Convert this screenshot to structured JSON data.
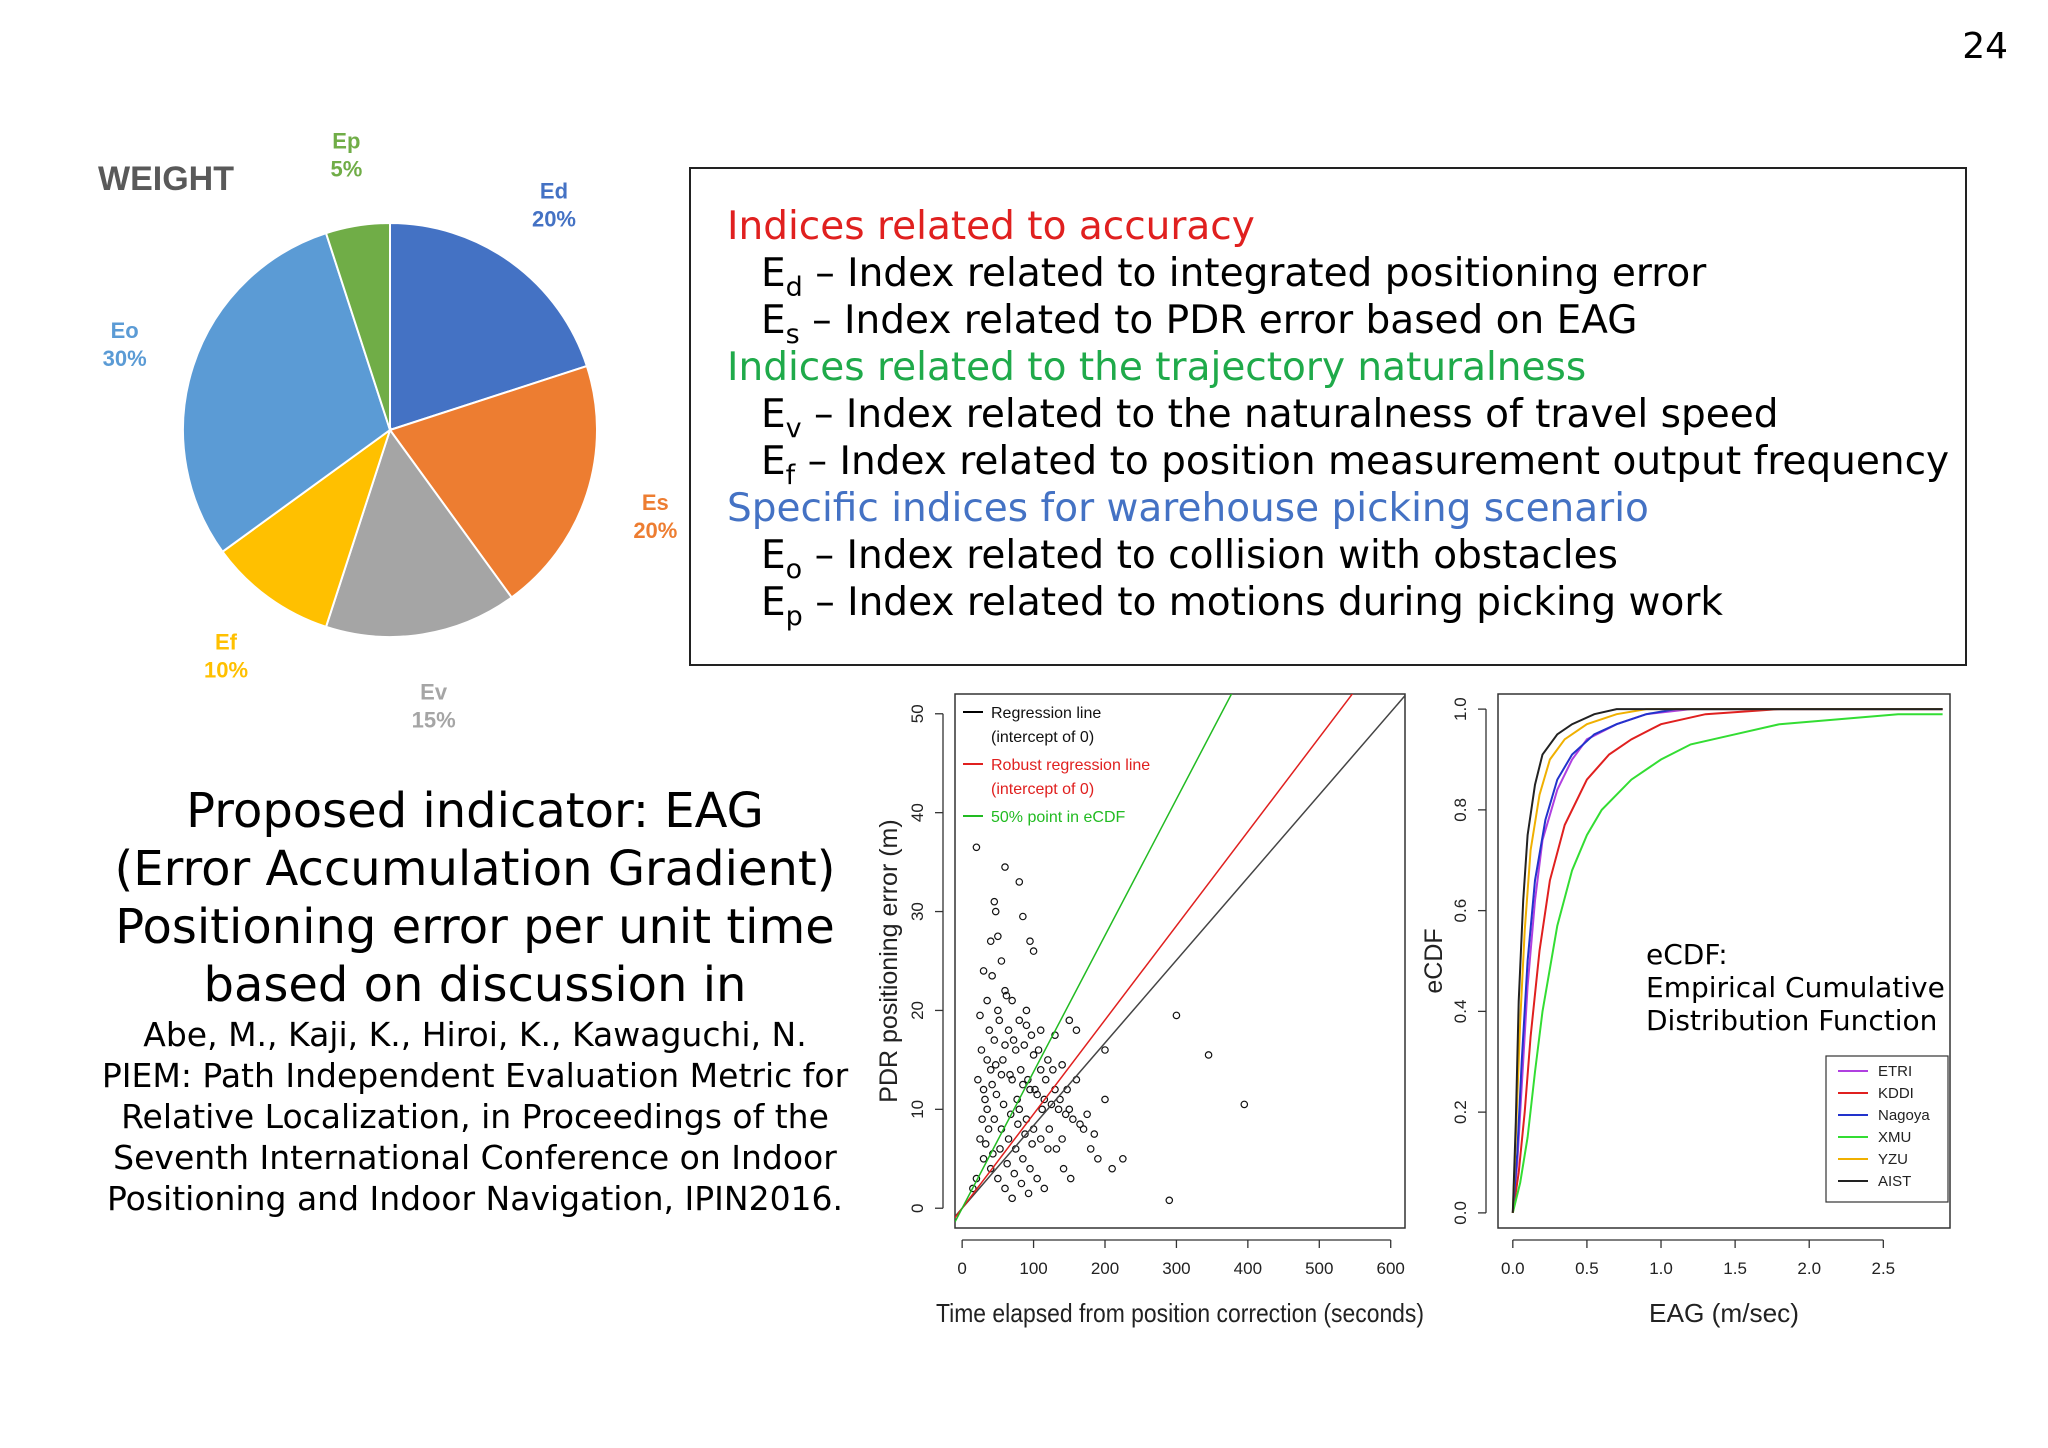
{
  "page_number": "24",
  "indices": {
    "groups": [
      {
        "heading": "Indices related to accuracy",
        "color": "#e0201f",
        "items": [
          {
            "sym": "E",
            "sub": "d",
            "text": " – Index related to integrated positioning error"
          },
          {
            "sym": "E",
            "sub": "s",
            "text": " – Index related to PDR error based on EAG"
          }
        ]
      },
      {
        "heading": "Indices related to the trajectory naturalness",
        "color": "#1faa4a",
        "items": [
          {
            "sym": "E",
            "sub": "v",
            "text": " – Index related to the naturalness of travel speed"
          },
          {
            "sym": "E",
            "sub": "f",
            "text": " – Index related to position measurement output frequency"
          }
        ]
      },
      {
        "heading": "Specific indices for warehouse picking scenario",
        "color": "#4472c4",
        "items": [
          {
            "sym": "E",
            "sub": "o",
            "text": " – Index related to collision with obstacles"
          },
          {
            "sym": "E",
            "sub": "p",
            "text": " – Index related to motions during picking work"
          }
        ]
      }
    ]
  },
  "proposal": {
    "lines": [
      "Proposed indicator: EAG",
      "(Error Accumulation Gradient)",
      "Positioning error per unit time",
      "based on discussion in"
    ],
    "reference": [
      "Abe, M., Kaji, K., Hiroi, K., Kawaguchi, N.",
      "PIEM: Path Independent Evaluation Metric for",
      "Relative Localization, in Proceedings of the",
      "Seventh International Conference on Indoor",
      "Positioning and Indoor Navigation, IPIN2016."
    ]
  },
  "ecdf_annotation": [
    "eCDF:",
    "Empirical Cumulative",
    "Distribution Function"
  ],
  "chart_data": [
    {
      "type": "pie",
      "title": "WEIGHT",
      "slices": [
        {
          "label": "Ed",
          "value": 20,
          "display": "20%",
          "color": "#4472c4"
        },
        {
          "label": "Es",
          "value": 20,
          "display": "20%",
          "color": "#ed7d31"
        },
        {
          "label": "Ev",
          "value": 15,
          "display": "15%",
          "color": "#a5a5a5"
        },
        {
          "label": "Ef",
          "value": 10,
          "display": "10%",
          "color": "#ffc000"
        },
        {
          "label": "Eo",
          "value": 30,
          "display": "30%",
          "color": "#5b9bd5"
        },
        {
          "label": "Ep",
          "value": 5,
          "display": "5%",
          "color": "#70ad47"
        }
      ]
    },
    {
      "type": "scatter",
      "xlabel": "Time elapsed from position correction (seconds)",
      "ylabel": "PDR positioning error (m)",
      "xlim": [
        -10,
        620
      ],
      "ylim": [
        -2,
        52
      ],
      "xticks": [
        0,
        100,
        200,
        300,
        400,
        500,
        600
      ],
      "yticks": [
        0,
        10,
        20,
        30,
        40,
        50
      ],
      "legend": [
        {
          "label": [
            "Regression line",
            "(intercept of 0)"
          ],
          "color": "#000000"
        },
        {
          "label": [
            "Robust regression line",
            "(intercept of 0)"
          ],
          "color": "#e0201f"
        },
        {
          "label": [
            "50% point in eCDF"
          ],
          "color": "#22bb22"
        }
      ],
      "lines": [
        {
          "name": "Regression line",
          "slope": 0.0836,
          "color": "#444444"
        },
        {
          "name": "Robust regression line",
          "slope": 0.0952,
          "color": "#e0201f"
        },
        {
          "name": "50% point in eCDF",
          "slope": 0.1379,
          "color": "#22bb22"
        }
      ],
      "points": [
        [
          20,
          36.5
        ],
        [
          60,
          34.5
        ],
        [
          80,
          33
        ],
        [
          45,
          31
        ],
        [
          47,
          30
        ],
        [
          85,
          29.5
        ],
        [
          50,
          27.5
        ],
        [
          40,
          27
        ],
        [
          95,
          27
        ],
        [
          100,
          26
        ],
        [
          55,
          25
        ],
        [
          30,
          24
        ],
        [
          42,
          23.5
        ],
        [
          60,
          22
        ],
        [
          35,
          21
        ],
        [
          70,
          21
        ],
        [
          50,
          20
        ],
        [
          25,
          19.5
        ],
        [
          80,
          19
        ],
        [
          90,
          18.5
        ],
        [
          110,
          18
        ],
        [
          150,
          19
        ],
        [
          160,
          18
        ],
        [
          130,
          17.5
        ],
        [
          45,
          17
        ],
        [
          60,
          16.5
        ],
        [
          75,
          16
        ],
        [
          100,
          15.5
        ],
        [
          120,
          15
        ],
        [
          140,
          14.5
        ],
        [
          40,
          14
        ],
        [
          55,
          13.5
        ],
        [
          70,
          13
        ],
        [
          85,
          12.5
        ],
        [
          95,
          12
        ],
        [
          105,
          11.5
        ],
        [
          115,
          11
        ],
        [
          125,
          10.5
        ],
        [
          135,
          10
        ],
        [
          145,
          9.5
        ],
        [
          155,
          9
        ],
        [
          165,
          8.5
        ],
        [
          30,
          12
        ],
        [
          35,
          10
        ],
        [
          45,
          9
        ],
        [
          55,
          8
        ],
        [
          65,
          7
        ],
        [
          75,
          6
        ],
        [
          85,
          5
        ],
        [
          95,
          4
        ],
        [
          105,
          3
        ],
        [
          115,
          2
        ],
        [
          25,
          7
        ],
        [
          30,
          5
        ],
        [
          40,
          4
        ],
        [
          50,
          3
        ],
        [
          60,
          2
        ],
        [
          70,
          1
        ],
        [
          20,
          3
        ],
        [
          15,
          2
        ],
        [
          35,
          15
        ],
        [
          65,
          18
        ],
        [
          90,
          20
        ],
        [
          110,
          14
        ],
        [
          130,
          12
        ],
        [
          150,
          10
        ],
        [
          170,
          8
        ],
        [
          180,
          6
        ],
        [
          190,
          5
        ],
        [
          210,
          4
        ],
        [
          160,
          13
        ],
        [
          200,
          16
        ],
        [
          300,
          19.5
        ],
        [
          345,
          15.5
        ],
        [
          395,
          10.5
        ],
        [
          290,
          0.8
        ],
        [
          225,
          5
        ],
        [
          200,
          11
        ],
        [
          175,
          9.5
        ],
        [
          185,
          7.5
        ],
        [
          140,
          7
        ],
        [
          120,
          6
        ],
        [
          80,
          10
        ],
        [
          90,
          9
        ],
        [
          100,
          8
        ],
        [
          110,
          7
        ],
        [
          48,
          11.5
        ],
        [
          58,
          10.5
        ],
        [
          68,
          9.5
        ],
        [
          78,
          8.5
        ],
        [
          88,
          7.5
        ],
        [
          98,
          6.5
        ],
        [
          38,
          18
        ],
        [
          52,
          19
        ],
        [
          62,
          21.5
        ],
        [
          72,
          17
        ],
        [
          82,
          14
        ],
        [
          92,
          13
        ],
        [
          102,
          12
        ],
        [
          112,
          10
        ],
        [
          122,
          8
        ],
        [
          132,
          6
        ],
        [
          142,
          4
        ],
        [
          152,
          3
        ],
        [
          28,
          9
        ],
        [
          33,
          6.5
        ],
        [
          43,
          5.5
        ],
        [
          53,
          6
        ],
        [
          63,
          4.5
        ],
        [
          73,
          3.5
        ],
        [
          83,
          2.5
        ],
        [
          93,
          1.5
        ],
        [
          22,
          13
        ],
        [
          27,
          16
        ],
        [
          32,
          11
        ],
        [
          37,
          8
        ],
        [
          42,
          12.5
        ],
        [
          47,
          14.5
        ],
        [
          57,
          15
        ],
        [
          67,
          13.5
        ],
        [
          77,
          11
        ],
        [
          87,
          16.5
        ],
        [
          97,
          17.5
        ],
        [
          107,
          16
        ],
        [
          117,
          13
        ],
        [
          127,
          14
        ],
        [
          137,
          11
        ],
        [
          147,
          12
        ]
      ]
    },
    {
      "type": "line",
      "xlabel": "EAG (m/sec)",
      "ylabel": "eCDF",
      "xlim": [
        -0.1,
        2.95
      ],
      "ylim": [
        -0.03,
        1.03
      ],
      "xticks": [
        0.0,
        0.5,
        1.0,
        1.5,
        2.0,
        2.5
      ],
      "xtick_labels": [
        "0.0",
        "0.5",
        "1.0",
        "1.5",
        "2.0",
        "2.5"
      ],
      "yticks": [
        0.0,
        0.2,
        0.4,
        0.6,
        0.8,
        1.0
      ],
      "ytick_labels": [
        "0.0",
        "0.2",
        "0.4",
        "0.6",
        "0.8",
        "1.0"
      ],
      "legend_position": "bottom-right",
      "series": [
        {
          "name": "ETRI",
          "color": "#b040e0",
          "x": [
            0,
            0.03,
            0.06,
            0.1,
            0.15,
            0.2,
            0.3,
            0.4,
            0.5,
            0.7,
            0.9,
            1.2,
            2.9
          ],
          "y": [
            0,
            0.1,
            0.25,
            0.45,
            0.62,
            0.74,
            0.84,
            0.9,
            0.94,
            0.97,
            0.99,
            1.0,
            1.0
          ]
        },
        {
          "name": "KDDI",
          "color": "#e0201f",
          "x": [
            0,
            0.04,
            0.08,
            0.12,
            0.18,
            0.25,
            0.35,
            0.5,
            0.65,
            0.8,
            1.0,
            1.3,
            1.8,
            2.9
          ],
          "y": [
            0,
            0.08,
            0.2,
            0.35,
            0.52,
            0.66,
            0.77,
            0.86,
            0.91,
            0.94,
            0.97,
            0.99,
            1.0,
            1.0
          ]
        },
        {
          "name": "Nagoya",
          "color": "#2233cc",
          "x": [
            0,
            0.03,
            0.06,
            0.1,
            0.15,
            0.22,
            0.3,
            0.4,
            0.55,
            0.7,
            0.9,
            1.1,
            2.9
          ],
          "y": [
            0,
            0.12,
            0.3,
            0.5,
            0.66,
            0.78,
            0.86,
            0.91,
            0.95,
            0.97,
            0.99,
            1.0,
            1.0
          ]
        },
        {
          "name": "XMU",
          "color": "#33dd33",
          "x": [
            0,
            0.05,
            0.1,
            0.15,
            0.2,
            0.3,
            0.4,
            0.5,
            0.6,
            0.8,
            1.0,
            1.2,
            1.5,
            1.8,
            2.2,
            2.6,
            2.9
          ],
          "y": [
            0,
            0.06,
            0.15,
            0.28,
            0.4,
            0.57,
            0.68,
            0.75,
            0.8,
            0.86,
            0.9,
            0.93,
            0.95,
            0.97,
            0.98,
            0.99,
            0.99
          ]
        },
        {
          "name": "YZU",
          "color": "#f0b000",
          "x": [
            0,
            0.02,
            0.05,
            0.08,
            0.12,
            0.18,
            0.25,
            0.35,
            0.5,
            0.7,
            0.9,
            1.2,
            2.9
          ],
          "y": [
            0,
            0.15,
            0.38,
            0.56,
            0.72,
            0.83,
            0.9,
            0.94,
            0.97,
            0.99,
            1.0,
            1.0,
            1.0
          ]
        },
        {
          "name": "AIST",
          "color": "#222222",
          "x": [
            0,
            0.02,
            0.04,
            0.07,
            0.1,
            0.15,
            0.2,
            0.3,
            0.4,
            0.55,
            0.7,
            0.9,
            1.1,
            2.9
          ],
          "y": [
            0,
            0.18,
            0.42,
            0.62,
            0.75,
            0.85,
            0.91,
            0.95,
            0.97,
            0.99,
            1.0,
            1.0,
            1.0,
            1.0
          ]
        }
      ]
    }
  ]
}
